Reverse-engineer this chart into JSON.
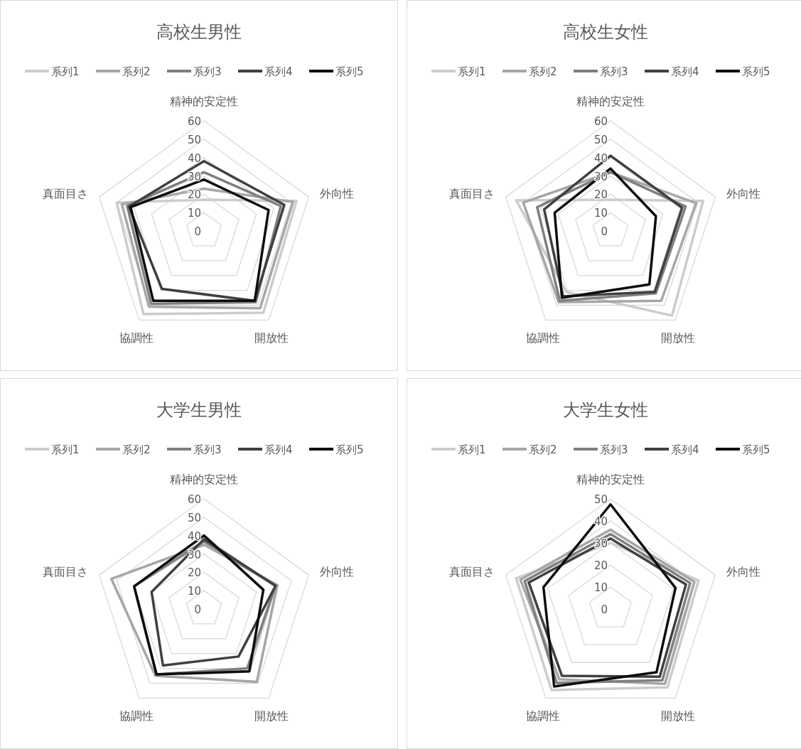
{
  "chart_data": [
    {
      "type": "radar",
      "title": "高校生男性",
      "categories": [
        "精神的安定性",
        "外向性",
        "開放性",
        "協調性",
        "真面目さ"
      ],
      "ylim": [
        0,
        60
      ],
      "yticks": [
        0,
        10,
        20,
        30,
        40,
        50,
        60
      ],
      "grid": true,
      "legend": "top",
      "series": [
        {
          "name": "系列1",
          "color": "#cccccc",
          "values": [
            17,
            53,
            55,
            56,
            50
          ]
        },
        {
          "name": "系列2",
          "color": "#a6a6a6",
          "values": [
            23,
            51,
            52,
            51,
            47
          ]
        },
        {
          "name": "系列3",
          "color": "#7f7f7f",
          "values": [
            32,
            44,
            48,
            49,
            44
          ]
        },
        {
          "name": "系列4",
          "color": "#404040",
          "values": [
            38,
            46,
            47,
            39,
            43
          ]
        },
        {
          "name": "系列5",
          "color": "#0d0d0d",
          "values": [
            28,
            37,
            47,
            47,
            42
          ]
        }
      ]
    },
    {
      "type": "radar",
      "title": "高校生女性",
      "categories": [
        "精神的安定性",
        "外向性",
        "開放性",
        "協調性",
        "真面目さ"
      ],
      "ylim": [
        0,
        60
      ],
      "yticks": [
        0,
        10,
        20,
        30,
        40,
        50,
        60
      ],
      "grid": true,
      "legend": "top",
      "series": [
        {
          "name": "系列1",
          "color": "#cccccc",
          "values": [
            17,
            53,
            57,
            41,
            54
          ]
        },
        {
          "name": "系列2",
          "color": "#a6a6a6",
          "values": [
            32,
            49,
            47,
            48,
            50
          ]
        },
        {
          "name": "系列3",
          "color": "#7f7f7f",
          "values": [
            32,
            43,
            42,
            47,
            42
          ]
        },
        {
          "name": "系列4",
          "color": "#404040",
          "values": [
            41,
            41,
            41,
            44,
            38
          ]
        },
        {
          "name": "系列5",
          "color": "#0d0d0d",
          "values": [
            34,
            26,
            36,
            45,
            32
          ]
        }
      ]
    },
    {
      "type": "radar",
      "title": "大学生男性",
      "categories": [
        "精神的安定性",
        "外向性",
        "開放性",
        "協調性",
        "真面目さ"
      ],
      "ylim": [
        0,
        60
      ],
      "yticks": [
        0,
        10,
        20,
        30,
        40,
        50,
        60
      ],
      "grid": true,
      "legend": "top",
      "series": [
        {
          "name": "系列1",
          "color": "#cccccc",
          "values": [
            36,
            41,
            42,
            44,
            40
          ]
        },
        {
          "name": "系列2",
          "color": "#a6a6a6",
          "values": [
            35,
            42,
            49,
            45,
            53
          ]
        },
        {
          "name": "系列3",
          "color": "#7f7f7f",
          "values": [
            37,
            41,
            40,
            44,
            40
          ]
        },
        {
          "name": "系列4",
          "color": "#404040",
          "values": [
            38,
            41,
            32,
            38,
            30
          ]
        },
        {
          "name": "系列5",
          "color": "#0d0d0d",
          "values": [
            40,
            34,
            42,
            44,
            40
          ]
        }
      ]
    },
    {
      "type": "radar",
      "title": "大学生女性",
      "categories": [
        "精神的安定性",
        "外向性",
        "開放性",
        "協調性",
        "真面目さ"
      ],
      "ylim": [
        0,
        50
      ],
      "yticks": [
        0,
        10,
        20,
        30,
        40,
        50
      ],
      "grid": true,
      "legend": "top",
      "series": [
        {
          "name": "系列1",
          "color": "#cccccc",
          "values": [
            30,
            42,
            44,
            45.5,
            45
          ]
        },
        {
          "name": "系列2",
          "color": "#a6a6a6",
          "values": [
            36,
            40,
            42,
            39.5,
            43
          ]
        },
        {
          "name": "系列3",
          "color": "#7f7f7f",
          "values": [
            34,
            38,
            40,
            41.5,
            41
          ]
        },
        {
          "name": "系列4",
          "color": "#404040",
          "values": [
            32,
            36,
            38,
            37.5,
            39
          ]
        },
        {
          "name": "系列5",
          "color": "#0d0d0d",
          "values": [
            47.5,
            31,
            35.5,
            43.5,
            32
          ]
        }
      ]
    }
  ]
}
